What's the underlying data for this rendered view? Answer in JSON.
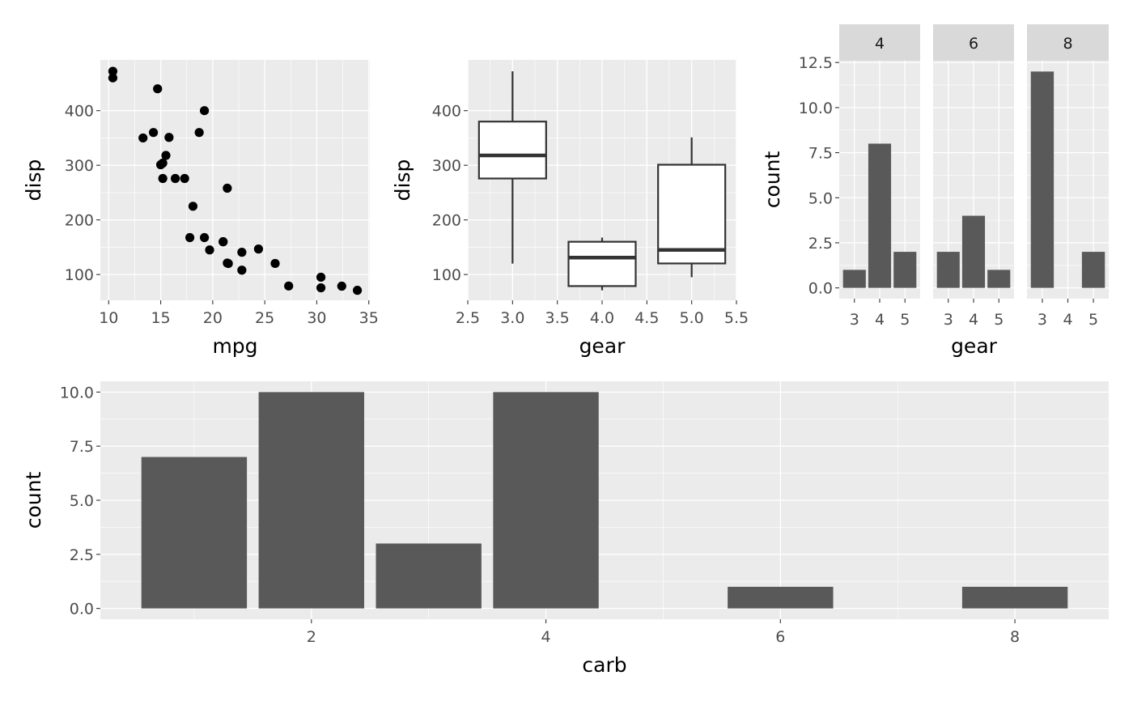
{
  "chart_data": [
    {
      "id": "scatter",
      "type": "scatter",
      "xlabel": "mpg",
      "ylabel": "disp",
      "xlim": [
        9.2,
        35.1
      ],
      "ylim": [
        52.8,
        492.9
      ],
      "xticks": [
        10,
        15,
        20,
        25,
        30,
        35
      ],
      "xtick_labels": [
        "10",
        "15",
        "20",
        "25",
        "30",
        "35"
      ],
      "yticks": [
        100,
        200,
        300,
        400
      ],
      "ytick_labels": [
        "100",
        "200",
        "300",
        "400"
      ],
      "grid": true,
      "points": [
        [
          21.0,
          160
        ],
        [
          21.0,
          160
        ],
        [
          22.8,
          108
        ],
        [
          21.4,
          258
        ],
        [
          18.7,
          360
        ],
        [
          18.1,
          225
        ],
        [
          14.3,
          360
        ],
        [
          24.4,
          146.7
        ],
        [
          22.8,
          140.8
        ],
        [
          19.2,
          167.6
        ],
        [
          17.8,
          167.6
        ],
        [
          16.4,
          275.8
        ],
        [
          17.3,
          275.8
        ],
        [
          15.2,
          275.8
        ],
        [
          10.4,
          472
        ],
        [
          10.4,
          460
        ],
        [
          14.7,
          440
        ],
        [
          32.4,
          78.7
        ],
        [
          30.4,
          75.7
        ],
        [
          33.9,
          71.1
        ],
        [
          21.5,
          120.1
        ],
        [
          15.5,
          318
        ],
        [
          15.2,
          304
        ],
        [
          13.3,
          350
        ],
        [
          19.2,
          400
        ],
        [
          27.3,
          79
        ],
        [
          26.0,
          120.3
        ],
        [
          30.4,
          95.1
        ],
        [
          15.8,
          351
        ],
        [
          19.7,
          145
        ],
        [
          15.0,
          301
        ],
        [
          21.4,
          121
        ]
      ]
    },
    {
      "id": "boxplot",
      "type": "box",
      "xlabel": "gear",
      "ylabel": "disp",
      "xlim": [
        2.5,
        5.5
      ],
      "ylim": [
        52.8,
        492.9
      ],
      "xticks": [
        2.5,
        3.0,
        3.5,
        4.0,
        4.5,
        5.0,
        5.5
      ],
      "xtick_labels": [
        "2.5",
        "3.0",
        "3.5",
        "4.0",
        "4.5",
        "5.0",
        "5.5"
      ],
      "yticks": [
        100,
        200,
        300,
        400
      ],
      "ytick_labels": [
        "100",
        "200",
        "300",
        "400"
      ],
      "grid": true,
      "boxes": [
        {
          "x": 3,
          "lower_whisker": 120.1,
          "q1": 275.8,
          "median": 318,
          "q3": 380,
          "upper_whisker": 472
        },
        {
          "x": 4,
          "lower_whisker": 71.1,
          "q1": 78.85,
          "median": 130.9,
          "q3": 160,
          "upper_whisker": 167.6
        },
        {
          "x": 5,
          "lower_whisker": 95.1,
          "q1": 120.3,
          "median": 145,
          "q3": 301,
          "upper_whisker": 351
        }
      ]
    },
    {
      "id": "facet-bars",
      "type": "bar",
      "xlabel": "gear",
      "ylabel": "count",
      "ylim": [
        -0.6,
        12.6
      ],
      "yticks": [
        0,
        2.5,
        5,
        7.5,
        10,
        12.5
      ],
      "ytick_labels": [
        "0.0",
        "2.5",
        "5.0",
        "7.5",
        "10.0",
        "12.5"
      ],
      "categories": [
        "3",
        "4",
        "5"
      ],
      "grid": true,
      "facets": [
        {
          "label": "4",
          "values": [
            1,
            8,
            2
          ]
        },
        {
          "label": "6",
          "values": [
            2,
            4,
            1
          ]
        },
        {
          "label": "8",
          "values": [
            12,
            0,
            2
          ]
        }
      ]
    },
    {
      "id": "carb-bars",
      "type": "bar",
      "xlabel": "carb",
      "ylabel": "count",
      "xlim": [
        0.2,
        8.8
      ],
      "ylim": [
        -0.5,
        10.5
      ],
      "xticks": [
        2,
        4,
        6,
        8
      ],
      "xtick_labels": [
        "2",
        "4",
        "6",
        "8"
      ],
      "yticks": [
        0,
        2.5,
        5,
        7.5,
        10
      ],
      "ytick_labels": [
        "0.0",
        "2.5",
        "5.0",
        "7.5",
        "10.0"
      ],
      "grid": true,
      "x": [
        1,
        2,
        3,
        4,
        6,
        8
      ],
      "values": [
        7,
        10,
        3,
        10,
        1,
        1
      ]
    }
  ]
}
